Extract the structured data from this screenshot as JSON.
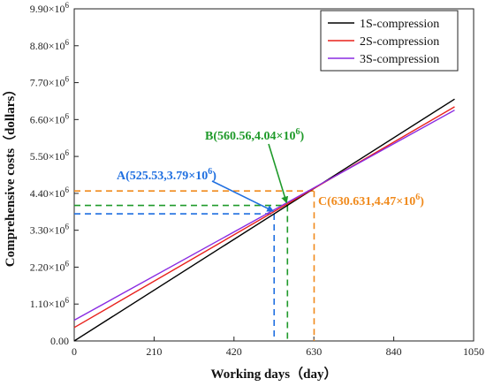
{
  "chart_data": {
    "type": "line",
    "xlabel": "Working days（day）",
    "ylabel": "Comprehensive costs（dollars）",
    "xlim": [
      0,
      1050
    ],
    "ylim": [
      0,
      9900000
    ],
    "x_ticks": [
      0,
      210,
      420,
      630,
      840,
      1050
    ],
    "y_ticks": [
      0,
      1100000,
      2200000,
      3300000,
      4400000,
      5500000,
      6600000,
      7700000,
      8800000,
      9900000
    ],
    "y_tick_labels": [
      {
        "base": "0.00",
        "exp": ""
      },
      {
        "base": "1.10×10",
        "exp": "6"
      },
      {
        "base": "2.20×10",
        "exp": "6"
      },
      {
        "base": "3.30×10",
        "exp": "6"
      },
      {
        "base": "4.40×10",
        "exp": "6"
      },
      {
        "base": "5.50×10",
        "exp": "6"
      },
      {
        "base": "6.60×10",
        "exp": "6"
      },
      {
        "base": "7.70×10",
        "exp": "6"
      },
      {
        "base": "8.80×10",
        "exp": "6"
      },
      {
        "base": "9.90×10",
        "exp": "6"
      }
    ],
    "legend_position": "top-right",
    "series": [
      {
        "name": "1S-compression",
        "color": "#000000",
        "x": [
          0,
          1000
        ],
        "y": [
          0,
          7210000
        ]
      },
      {
        "name": "2S-compression",
        "color": "#e8211c",
        "x": [
          0,
          1000
        ],
        "y": [
          400000,
          6980000
        ]
      },
      {
        "name": "3S-compression",
        "color": "#8a2be2",
        "x": [
          0,
          1000
        ],
        "y": [
          620000,
          6880000
        ]
      }
    ],
    "annotations": [
      {
        "id": "A",
        "label": "A(525.53,3.79×10",
        "exp": "6",
        "close": ")",
        "x": 525.53,
        "y": 3790000,
        "color": "#1f6fe0"
      },
      {
        "id": "B",
        "label": "B(560.56,4.04×10",
        "exp": "6",
        "close": ")",
        "x": 560.56,
        "y": 4040000,
        "color": "#1f9a2a"
      },
      {
        "id": "C",
        "label": "C(630.631,4.47×10",
        "exp": "6",
        "close": ")",
        "x": 630.631,
        "y": 4470000,
        "color": "#f08a1c"
      }
    ]
  }
}
